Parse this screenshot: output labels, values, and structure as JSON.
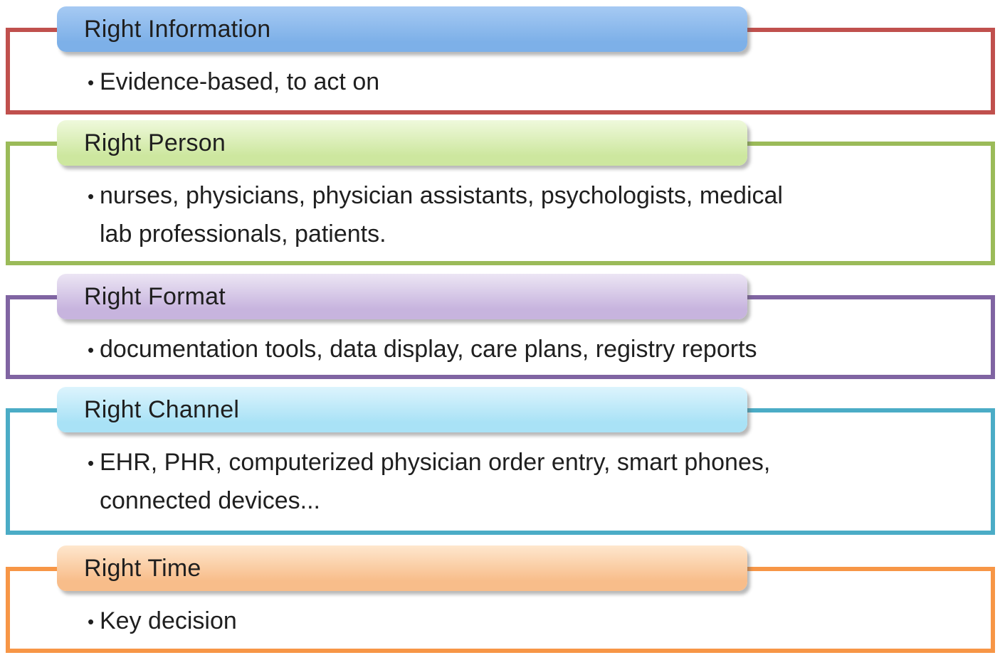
{
  "diagram": {
    "type": "vertical-box-list",
    "bullet_char": "•",
    "text_color": "#1f1f1f",
    "background_color": "#ffffff",
    "sections": [
      {
        "title": "Right Information",
        "bullet_lines": [
          "Evidence-based, to act on"
        ],
        "border_color": "#C0504D",
        "header_gradient_top": "#A6CAF3",
        "header_gradient_bottom": "#7DB0E8"
      },
      {
        "title": "Right Person",
        "bullet_lines": [
          "nurses, physicians, physician assistants, psychologists, medical",
          "lab professionals, patients."
        ],
        "border_color": "#9BBB59",
        "header_gradient_top": "#EFF9DC",
        "header_gradient_bottom": "#CDE79F"
      },
      {
        "title": "Right Format",
        "bullet_lines": [
          "documentation tools, data display, care plans, registry reports"
        ],
        "border_color": "#8064A2",
        "header_gradient_top": "#ECE5F4",
        "header_gradient_bottom": "#C7B4DE"
      },
      {
        "title": "Right Channel",
        "bullet_lines": [
          "EHR, PHR, computerized physician order entry, smart phones,",
          "connected devices..."
        ],
        "border_color": "#4BACC6",
        "header_gradient_top": "#DDF4FD",
        "header_gradient_bottom": "#A9E2F6"
      },
      {
        "title": "Right Time",
        "bullet_lines": [
          "Key decision"
        ],
        "border_color": "#F79646",
        "header_gradient_top": "#FEE7CE",
        "header_gradient_bottom": "#F8BD8A"
      }
    ]
  }
}
